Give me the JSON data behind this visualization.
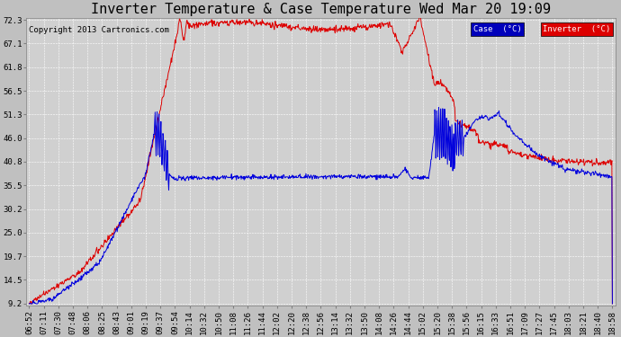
{
  "title": "Inverter Temperature & Case Temperature Wed Mar 20 19:09",
  "copyright": "Copyright 2013 Cartronics.com",
  "yticks": [
    9.2,
    14.5,
    19.7,
    25.0,
    30.2,
    35.5,
    40.8,
    46.0,
    51.3,
    56.5,
    61.8,
    67.1,
    72.3
  ],
  "ylim": [
    9.2,
    72.3
  ],
  "xtick_labels": [
    "06:52",
    "07:11",
    "07:30",
    "07:48",
    "08:06",
    "08:25",
    "08:43",
    "09:01",
    "09:19",
    "09:37",
    "09:54",
    "10:14",
    "10:32",
    "10:50",
    "11:08",
    "11:26",
    "11:44",
    "12:02",
    "12:20",
    "12:38",
    "12:56",
    "13:14",
    "13:32",
    "13:50",
    "14:08",
    "14:26",
    "14:44",
    "15:02",
    "15:20",
    "15:38",
    "15:56",
    "16:15",
    "16:33",
    "16:51",
    "17:09",
    "17:27",
    "17:45",
    "18:03",
    "18:21",
    "18:40",
    "18:58"
  ],
  "bg_color": "#c0c0c0",
  "plot_bg_color": "#d0d0d0",
  "grid_color": "#ffffff",
  "case_color": "#0000dd",
  "inverter_color": "#dd0000",
  "legend_case_bg": "#0000bb",
  "legend_inv_bg": "#dd0000",
  "title_fontsize": 11,
  "tick_fontsize": 6.5,
  "copyright_fontsize": 6.5
}
